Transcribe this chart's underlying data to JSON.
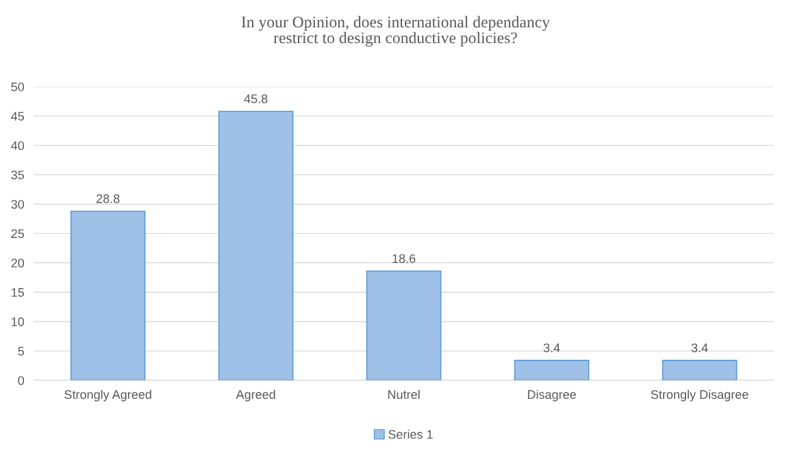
{
  "chart_data": {
    "type": "bar",
    "title": "In your Opinion, does international dependancy restrict to design conductive policies?",
    "categories": [
      "Strongly Agreed",
      "Agreed",
      "Nutrel",
      "Disagree",
      "Strongly Disagree"
    ],
    "series": [
      {
        "name": "Series 1",
        "color": "#9fc0e7",
        "values": [
          28.8,
          45.8,
          18.6,
          3.4,
          3.4
        ]
      }
    ],
    "ylim": [
      0,
      50
    ],
    "yticks": [
      0,
      5,
      10,
      15,
      20,
      25,
      30,
      35,
      40,
      45,
      50
    ],
    "grid": "y",
    "legend": "bottom",
    "data_labels": true
  }
}
